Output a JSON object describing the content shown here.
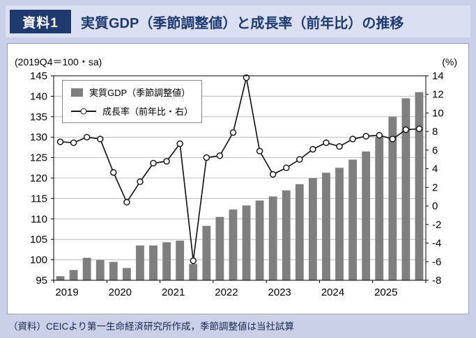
{
  "page": {
    "background": "#c9d0e8"
  },
  "header": {
    "badge": "資料1",
    "title": "実質GDP（季節調整値）と成長率（前年比）の推移",
    "colors": {
      "badge_bg": "#1e3a6f",
      "badge_text": "#ffffff",
      "title_text": "#1e3a6f",
      "strip_bg": "#dae0f2"
    }
  },
  "legend": {
    "bar_label": "実質GDP（季節調整値）",
    "line_label": "成長率（前年比・右）"
  },
  "footer": {
    "source": "（資料）CEICより第一生命経済研究所作成，季節調整値は当社試算"
  },
  "chart_data": {
    "type": "bar+line",
    "title": "実質GDP（季節調整値）と成長率（前年比）の推移",
    "left_axis": {
      "label": "(2019Q4＝100・sa)",
      "min": 95,
      "max": 145,
      "tick_step": 5,
      "ticks": [
        145,
        140,
        135,
        130,
        125,
        120,
        115,
        110,
        105,
        100,
        95
      ]
    },
    "right_axis": {
      "label": "(%)",
      "min": -8,
      "max": 14,
      "tick_step": 2,
      "ticks": [
        14,
        12,
        10,
        8,
        6,
        4,
        2,
        0,
        -2,
        -4,
        -6,
        -8
      ]
    },
    "x": {
      "year_labels": [
        "2019",
        "2020",
        "2021",
        "2022",
        "2023",
        "2024",
        "2025"
      ],
      "quarters_per_year": 4,
      "n_points": 28
    },
    "grid": true,
    "legend_position": "top-left inside plot",
    "series": [
      {
        "name": "実質GDP（季節調整値）",
        "type": "bar",
        "axis": "left",
        "color": "#7f7f7f",
        "values": [
          96.0,
          97.5,
          100.5,
          100.0,
          99.5,
          98.0,
          103.5,
          103.5,
          104.3,
          104.7,
          99.0,
          108.3,
          110.5,
          112.3,
          113.3,
          114.5,
          115.5,
          117.0,
          118.5,
          120.0,
          121.3,
          122.5,
          124.5,
          126.5,
          130.0,
          135.0,
          139.5,
          141.0
        ]
      },
      {
        "name": "成長率（前年比・右）",
        "type": "line",
        "axis": "right",
        "color": "#1a1a1a",
        "marker": "open-circle",
        "values": [
          6.9,
          6.8,
          7.4,
          7.2,
          3.6,
          0.4,
          2.6,
          4.6,
          4.8,
          6.7,
          -5.9,
          5.2,
          5.4,
          7.9,
          13.8,
          5.9,
          3.4,
          4.1,
          5.0,
          6.1,
          6.8,
          6.4,
          7.2,
          7.5,
          7.6,
          7.2,
          8.2,
          8.3
        ]
      }
    ]
  }
}
